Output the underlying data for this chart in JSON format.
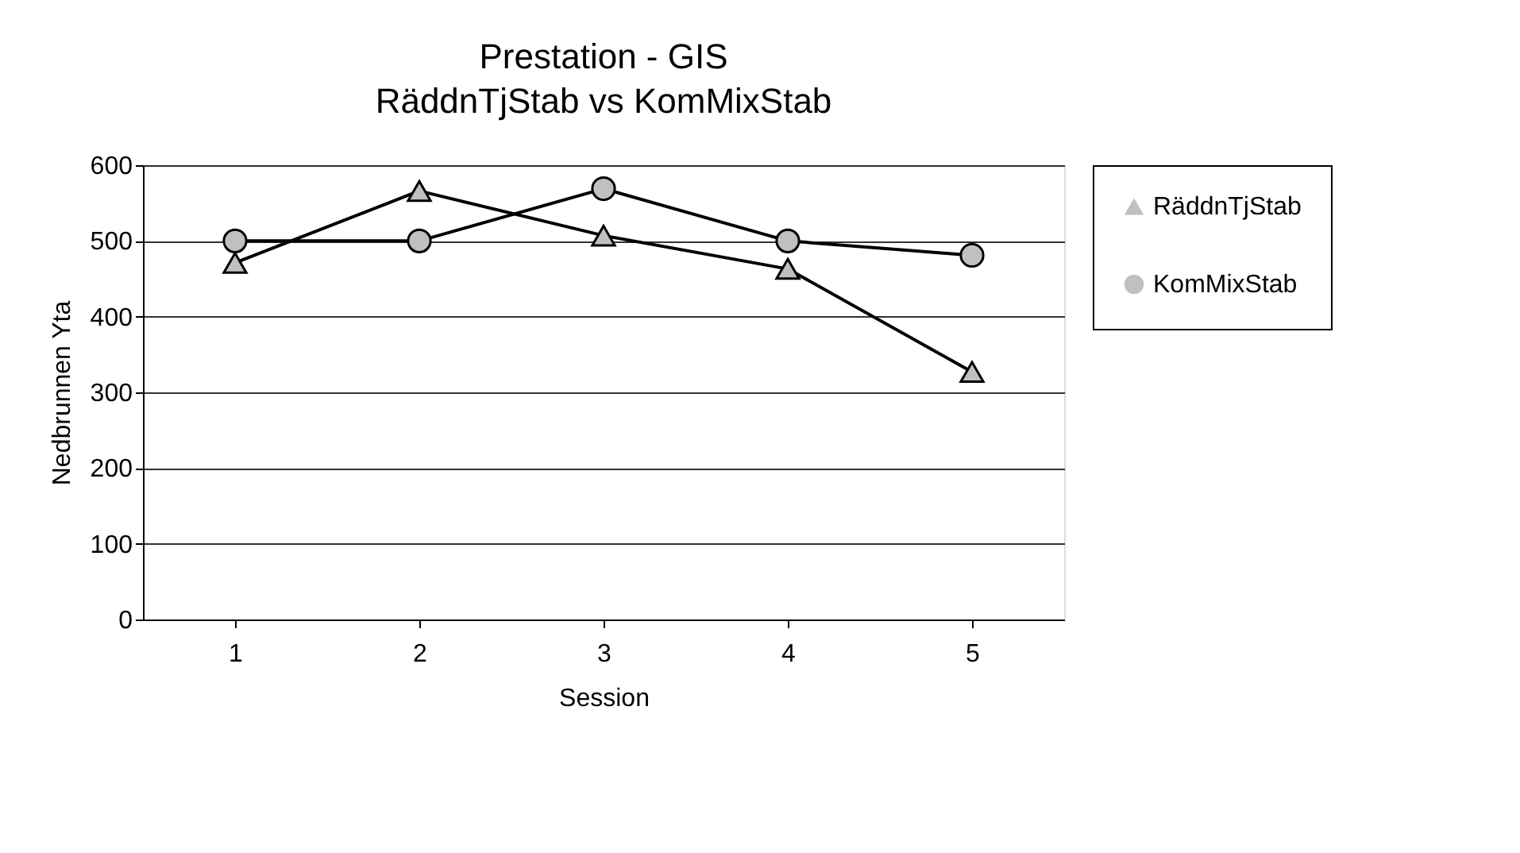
{
  "chart_data": {
    "type": "line",
    "title": "Prestation - GIS",
    "subtitle": "RäddnTjStab vs KomMixStab",
    "xlabel": "Session",
    "ylabel": "Nedbrunnen Yta",
    "categories": [
      "1",
      "2",
      "3",
      "4",
      "5"
    ],
    "series": [
      {
        "name": "RäddnTjStab",
        "color": "#000000",
        "marker": "triangle",
        "values": [
          471,
          566,
          507,
          463,
          327
        ]
      },
      {
        "name": "KomMixStab",
        "color": "#000000",
        "marker": "circle",
        "values": [
          500,
          500,
          569,
          500,
          481
        ]
      }
    ],
    "ylim": [
      0,
      600
    ],
    "yticks": [
      0,
      100,
      200,
      300,
      400,
      500,
      600
    ],
    "grid": "y",
    "legend": "right",
    "line_style": "solid"
  }
}
